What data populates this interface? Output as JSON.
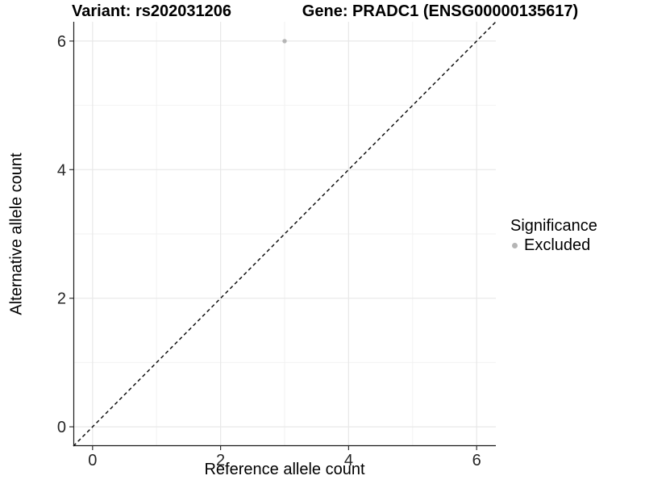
{
  "chart_data": {
    "type": "scatter",
    "title_left": "Variant: rs202031206",
    "title_right": "Gene: PRADC1 (ENSG00000135617)",
    "xlabel": "Reference allele count",
    "ylabel": "Alternative allele count",
    "xlim": [
      -0.3,
      6.3
    ],
    "ylim": [
      -0.3,
      6.3
    ],
    "x_ticks": [
      0,
      2,
      4,
      6
    ],
    "y_ticks": [
      0,
      2,
      4,
      6
    ],
    "x_minor_ticks": [
      1,
      3,
      5
    ],
    "y_minor_ticks": [
      1,
      3,
      5
    ],
    "grid": true,
    "legend": {
      "title": "Significance",
      "position": "right",
      "entries": [
        {
          "label": "Excluded",
          "color": "#b5b5b5"
        }
      ]
    },
    "series": [
      {
        "name": "Excluded",
        "color": "#b5b5b5",
        "point_radius": 2.7,
        "points": [
          [
            3,
            6
          ]
        ]
      }
    ],
    "reference_line": {
      "type": "identity y=x",
      "style": "dashed",
      "color": "#111111",
      "from": [
        -0.3,
        -0.3
      ],
      "to": [
        6.3,
        6.3
      ]
    },
    "colors": {
      "background": "#ffffff",
      "grid_major": "#e8e8e8",
      "grid_minor": "#f2f2f2",
      "axis_line": "#1a1a1a",
      "tick_mark": "#333333",
      "tick_label": "#262626"
    }
  }
}
